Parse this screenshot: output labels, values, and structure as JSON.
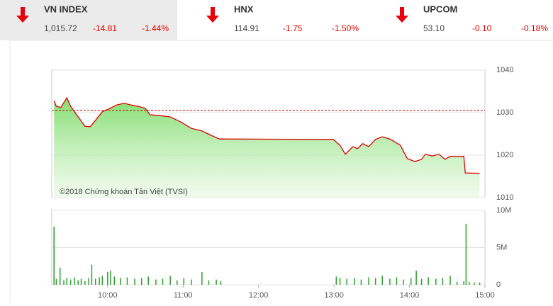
{
  "header": {
    "indices": [
      {
        "name": "VN INDEX",
        "value": "1,015.72",
        "change": "-14.81",
        "percent": "-1.44%"
      },
      {
        "name": "HNX",
        "value": "114.91",
        "change": "-1.75",
        "percent": "-1.50%"
      },
      {
        "name": "UPCOM",
        "value": "53.10",
        "change": "-0.10",
        "percent": "-0.18%"
      }
    ]
  },
  "chart_data": [
    {
      "type": "area",
      "annotation": "©2018 Chứng khoán Tân Việt (TVSI)",
      "color": "#e00000",
      "fill": "#7ddc6a",
      "reference_line": 1030.53,
      "reference_color": "#c00000",
      "x": [
        9.29,
        9.32,
        9.38,
        9.46,
        9.51,
        9.61,
        9.7,
        9.77,
        9.84,
        9.93,
        10.03,
        10.12,
        10.22,
        10.31,
        10.4,
        10.5,
        10.56,
        10.69,
        10.83,
        10.97,
        11.11,
        11.25,
        11.39,
        11.48,
        12.99,
        13.08,
        13.15,
        13.25,
        13.31,
        13.38,
        13.46,
        13.55,
        13.64,
        13.74,
        13.88,
        13.97,
        14.07,
        14.16,
        14.21,
        14.3,
        14.39,
        14.47,
        14.54,
        14.72,
        14.74,
        14.93
      ],
      "values": [
        1032.8,
        1031.5,
        1031.2,
        1033.5,
        1031.5,
        1029.0,
        1026.8,
        1026.7,
        1028.2,
        1030.2,
        1031.0,
        1031.8,
        1032.2,
        1031.8,
        1031.5,
        1031.0,
        1029.5,
        1029.3,
        1029.0,
        1027.8,
        1026.3,
        1025.7,
        1024.5,
        1023.8,
        1023.7,
        1022.3,
        1020.2,
        1022.0,
        1021.5,
        1022.7,
        1022.0,
        1023.7,
        1024.3,
        1023.8,
        1022.3,
        1019.2,
        1018.5,
        1019.0,
        1020.2,
        1019.8,
        1020.2,
        1019.0,
        1019.7,
        1019.7,
        1015.8,
        1015.72
      ],
      "xlim": [
        9.26,
        15
      ],
      "ylim": [
        1010,
        1040
      ],
      "yticks": [
        1010,
        1020,
        1030,
        1040
      ],
      "grid": true
    },
    {
      "type": "bar",
      "color": "#2e9e2e",
      "x": [
        9.29,
        9.32,
        9.37,
        9.42,
        9.46,
        9.51,
        9.56,
        9.61,
        9.65,
        9.7,
        9.75,
        9.79,
        9.84,
        9.89,
        9.93,
        10.0,
        10.04,
        10.09,
        10.17,
        10.26,
        10.36,
        10.45,
        10.54,
        10.64,
        10.73,
        10.83,
        10.92,
        11.01,
        11.11,
        11.25,
        11.34,
        11.44,
        11.5,
        13.03,
        13.08,
        13.17,
        13.27,
        13.36,
        13.46,
        13.55,
        13.64,
        13.74,
        13.83,
        13.92,
        14.02,
        14.09,
        14.16,
        14.25,
        14.35,
        14.44,
        14.54,
        14.63,
        14.72,
        14.75,
        14.79,
        14.86,
        14.93
      ],
      "values": [
        7800000,
        800000,
        2300000,
        600000,
        900000,
        700000,
        1000000,
        600000,
        800000,
        500000,
        900000,
        2700000,
        800000,
        1000000,
        1200000,
        1700000,
        1900000,
        1100000,
        900000,
        1000000,
        800000,
        900000,
        1100000,
        700000,
        800000,
        1200000,
        600000,
        900000,
        700000,
        1700000,
        600000,
        700000,
        500000,
        1100000,
        900000,
        800000,
        900000,
        700000,
        1000000,
        900000,
        1200000,
        800000,
        1000000,
        700000,
        900000,
        1900000,
        800000,
        1000000,
        800000,
        900000,
        1200000,
        400000,
        500000,
        8200000,
        400000,
        300000,
        300000
      ],
      "xlim": [
        9.26,
        15
      ],
      "ylim": [
        0,
        10000000
      ],
      "yticks": [
        0,
        {
          "value": 5000000,
          "label": "5M"
        },
        {
          "value": 10000000,
          "label": "10M"
        }
      ],
      "xticks": [
        {
          "value": 10,
          "label": "10:00"
        },
        {
          "value": 11,
          "label": "11:00"
        },
        {
          "value": 12,
          "label": "12:00"
        },
        {
          "value": 13,
          "label": "13:00"
        },
        {
          "value": 14,
          "label": "14:00"
        },
        {
          "value": 15,
          "label": "15:00"
        }
      ],
      "grid": true
    }
  ]
}
